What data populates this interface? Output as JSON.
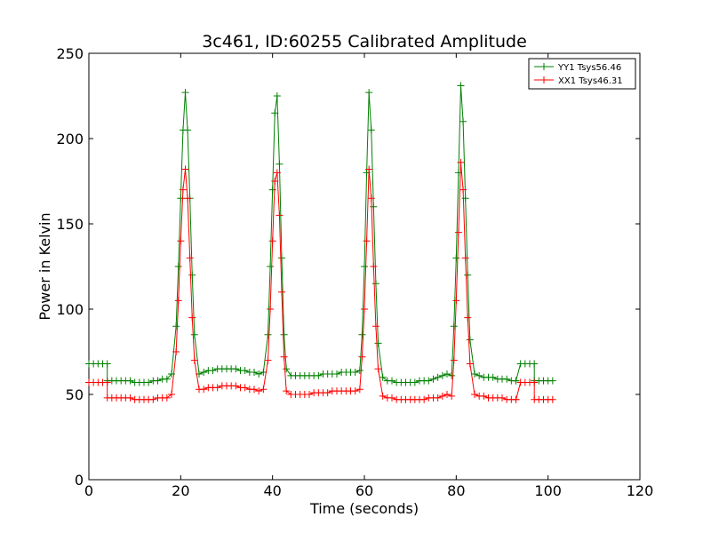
{
  "chart_data": {
    "type": "line",
    "title": "3c461, ID:60255 Calibrated Amplitude",
    "xlabel": "Time (seconds)",
    "ylabel": "Power in Kelvin",
    "xlim": [
      0,
      120
    ],
    "ylim": [
      0,
      250
    ],
    "xticks": [
      "0",
      "20",
      "40",
      "60",
      "80",
      "100",
      "120"
    ],
    "yticks": [
      "0",
      "50",
      "100",
      "150",
      "200",
      "250"
    ],
    "grid": false,
    "legend_position": "top-right",
    "series": [
      {
        "name": "YY1 Tsys56.46",
        "color": "#008000",
        "marker": "plus",
        "x": [
          0,
          1,
          2,
          3,
          4,
          4.01,
          5,
          6,
          7,
          8,
          9,
          10,
          11,
          12,
          13,
          14,
          15,
          16,
          17,
          18,
          19,
          19.5,
          20,
          20.5,
          21,
          21.5,
          22,
          22.5,
          23,
          24,
          25,
          26,
          27,
          28,
          29,
          30,
          31,
          32,
          33,
          34,
          35,
          36,
          37,
          38,
          39,
          39.5,
          40,
          40.5,
          41,
          41.5,
          42,
          42.5,
          43,
          44,
          45,
          46,
          47,
          48,
          49,
          50,
          51,
          52,
          53,
          54,
          55,
          56,
          57,
          58,
          59,
          59.5,
          60,
          60.5,
          61,
          61.5,
          62,
          62.5,
          63,
          64,
          65,
          66,
          67,
          68,
          69,
          70,
          71,
          72,
          73,
          74,
          75,
          76,
          77,
          78,
          79,
          79.5,
          80,
          80.5,
          81,
          81.5,
          82,
          82.5,
          83,
          84,
          85,
          86,
          87,
          88,
          89,
          90,
          91,
          92,
          93,
          93.01,
          94,
          95,
          96,
          97,
          97.01,
          98,
          99,
          100,
          101
        ],
        "y": [
          68,
          68,
          68,
          68,
          68,
          58,
          58,
          58,
          58,
          58,
          58,
          57,
          57,
          57,
          57,
          58,
          58,
          59,
          59,
          62,
          90,
          125,
          165,
          205,
          227,
          205,
          165,
          120,
          85,
          62,
          63,
          64,
          64,
          65,
          65,
          65,
          65,
          65,
          64,
          64,
          63,
          63,
          62,
          63,
          85,
          125,
          170,
          215,
          225,
          185,
          130,
          85,
          65,
          61,
          61,
          61,
          61,
          61,
          61,
          61,
          62,
          62,
          62,
          62,
          63,
          63,
          63,
          63,
          64,
          85,
          125,
          180,
          227,
          205,
          160,
          115,
          80,
          60,
          58,
          58,
          57,
          57,
          57,
          57,
          57,
          58,
          58,
          58,
          59,
          60,
          61,
          62,
          61,
          90,
          130,
          180,
          231,
          210,
          165,
          120,
          82,
          62,
          61,
          60,
          60,
          60,
          59,
          59,
          59,
          58,
          58,
          58,
          68,
          68,
          68,
          68,
          58,
          58,
          58,
          58,
          58
        ]
      },
      {
        "name": "XX1 Tsys46.31",
        "color": "#ff0000",
        "marker": "plus",
        "x": [
          0,
          1,
          2,
          3,
          4,
          4.01,
          5,
          6,
          7,
          8,
          9,
          10,
          11,
          12,
          13,
          14,
          15,
          16,
          17,
          18,
          19,
          19.5,
          20,
          20.5,
          21,
          21.5,
          22,
          22.5,
          23,
          24,
          25,
          26,
          27,
          28,
          29,
          30,
          31,
          32,
          33,
          34,
          35,
          36,
          37,
          38,
          39,
          39.5,
          40,
          40.5,
          41,
          41.5,
          42,
          42.5,
          43,
          44,
          45,
          46,
          47,
          48,
          49,
          50,
          51,
          52,
          53,
          54,
          55,
          56,
          57,
          58,
          59,
          59.5,
          60,
          60.5,
          61,
          61.5,
          62,
          62.5,
          63,
          64,
          65,
          66,
          67,
          68,
          69,
          70,
          71,
          72,
          73,
          74,
          75,
          76,
          77,
          78,
          79,
          79.5,
          80,
          80.5,
          81,
          81.5,
          82,
          82.5,
          83,
          84,
          85,
          86,
          87,
          88,
          89,
          90,
          91,
          92,
          93,
          93.01,
          94,
          95,
          96,
          97,
          97.01,
          98,
          99,
          100,
          101
        ],
        "y": [
          57,
          57,
          57,
          57,
          57,
          48,
          48,
          48,
          48,
          48,
          48,
          47,
          47,
          47,
          47,
          47,
          48,
          48,
          48,
          50,
          75,
          105,
          140,
          170,
          182,
          165,
          130,
          95,
          70,
          53,
          53,
          54,
          54,
          54,
          55,
          55,
          55,
          55,
          54,
          54,
          53,
          53,
          52,
          53,
          70,
          100,
          140,
          175,
          180,
          155,
          110,
          72,
          52,
          50,
          50,
          50,
          50,
          50,
          51,
          51,
          51,
          51,
          52,
          52,
          52,
          52,
          52,
          52,
          53,
          72,
          100,
          140,
          182,
          165,
          125,
          90,
          65,
          49,
          48,
          48,
          47,
          47,
          47,
          47,
          47,
          47,
          47,
          48,
          48,
          48,
          49,
          50,
          49,
          70,
          105,
          145,
          186,
          170,
          130,
          95,
          68,
          50,
          49,
          49,
          48,
          48,
          48,
          48,
          47,
          47,
          47,
          47,
          57,
          57,
          57,
          57,
          47,
          47,
          47,
          47,
          47
        ]
      }
    ]
  }
}
